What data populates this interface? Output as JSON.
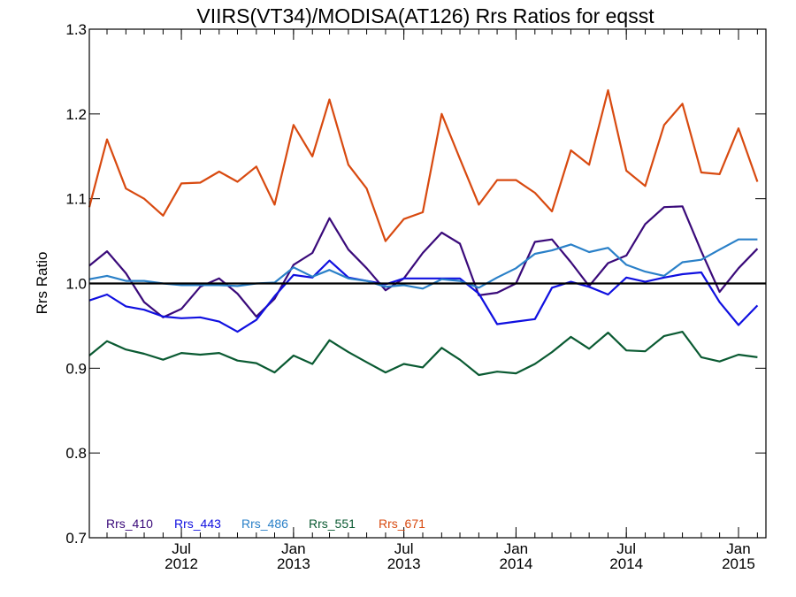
{
  "chart_data": {
    "type": "line",
    "title": "VIIRS(VT34)/MODISA(AT126)  Rrs Ratios for eqsst",
    "xlabel": "",
    "ylabel": "Rrs Ratio",
    "ylim": [
      0.7,
      1.3
    ],
    "yticks": [
      0.7,
      0.8,
      0.9,
      1.0,
      1.1,
      1.2,
      1.3
    ],
    "ytick_labels": [
      "0.7",
      "0.8",
      "0.9",
      "1.0",
      "1.1",
      "1.2",
      "1.3"
    ],
    "xlim": [
      "2012-02-01",
      "2015-02-15"
    ],
    "xticks": [
      {
        "date": "2012-07-01",
        "line1": "Jul",
        "line2": "2012"
      },
      {
        "date": "2013-01-01",
        "line1": "Jan",
        "line2": "2013"
      },
      {
        "date": "2013-07-01",
        "line1": "Jul",
        "line2": "2013"
      },
      {
        "date": "2014-01-01",
        "line1": "Jan",
        "line2": "2014"
      },
      {
        "date": "2014-07-01",
        "line1": "Jul",
        "line2": "2014"
      },
      {
        "date": "2015-01-01",
        "line1": "Jan",
        "line2": "2015"
      }
    ],
    "reference_line": 1.0,
    "legend_position": "bottom-left",
    "x": [
      "2012-02-01",
      "2012-03-01",
      "2012-04-01",
      "2012-05-01",
      "2012-06-01",
      "2012-07-01",
      "2012-08-01",
      "2012-09-01",
      "2012-10-01",
      "2012-11-01",
      "2012-12-01",
      "2013-01-01",
      "2013-02-01",
      "2013-03-01",
      "2013-04-01",
      "2013-05-01",
      "2013-06-01",
      "2013-07-01",
      "2013-08-01",
      "2013-09-01",
      "2013-10-01",
      "2013-11-01",
      "2013-12-01",
      "2014-01-01",
      "2014-02-01",
      "2014-03-01",
      "2014-04-01",
      "2014-05-01",
      "2014-06-01",
      "2014-07-01",
      "2014-08-01",
      "2014-09-01",
      "2014-10-01",
      "2014-11-01",
      "2014-12-01",
      "2015-01-01",
      "2015-02-01"
    ],
    "series": [
      {
        "name": "Rrs_410",
        "color": "#3a0a7a",
        "values": [
          1.021,
          1.038,
          1.012,
          0.978,
          0.96,
          0.97,
          0.996,
          1.006,
          0.988,
          0.961,
          0.982,
          1.022,
          1.036,
          1.077,
          1.04,
          1.018,
          0.992,
          1.006,
          1.036,
          1.06,
          1.047,
          0.986,
          0.989,
          1.0,
          1.049,
          1.052,
          1.025,
          0.997,
          1.024,
          1.033,
          1.07,
          1.09,
          1.091,
          1.038,
          0.99,
          1.018,
          1.041
        ]
      },
      {
        "name": "Rrs_443",
        "color": "#1010e0",
        "values": [
          0.98,
          0.987,
          0.973,
          0.969,
          0.961,
          0.959,
          0.96,
          0.955,
          0.943,
          0.957,
          0.985,
          1.01,
          1.007,
          1.027,
          1.007,
          1.003,
          0.999,
          1.006,
          1.006,
          1.006,
          1.006,
          0.988,
          0.952,
          0.955,
          0.958,
          0.995,
          1.002,
          0.996,
          0.987,
          1.007,
          1.002,
          1.007,
          1.011,
          1.013,
          0.978,
          0.951,
          0.974
        ]
      },
      {
        "name": "Rrs_486",
        "color": "#2a80c8",
        "values": [
          1.005,
          1.009,
          1.003,
          1.003,
          1.0,
          0.998,
          0.998,
          0.998,
          0.997,
          1.0,
          1.001,
          1.019,
          1.008,
          1.016,
          1.006,
          1.003,
          0.996,
          0.998,
          0.994,
          1.005,
          1.003,
          0.995,
          1.007,
          1.018,
          1.035,
          1.039,
          1.046,
          1.037,
          1.042,
          1.022,
          1.014,
          1.009,
          1.025,
          1.028,
          1.04,
          1.052,
          1.052
        ]
      },
      {
        "name": "Rrs_551",
        "color": "#0a5a32",
        "values": [
          0.915,
          0.932,
          0.922,
          0.917,
          0.91,
          0.918,
          0.916,
          0.918,
          0.909,
          0.906,
          0.895,
          0.915,
          0.905,
          0.933,
          0.919,
          0.907,
          0.895,
          0.905,
          0.901,
          0.924,
          0.91,
          0.892,
          0.896,
          0.894,
          0.905,
          0.919,
          0.937,
          0.923,
          0.942,
          0.921,
          0.92,
          0.938,
          0.943,
          0.913,
          0.908,
          0.916,
          0.913
        ]
      },
      {
        "name": "Rrs_671",
        "color": "#d84a10",
        "values": [
          1.09,
          1.17,
          1.112,
          1.1,
          1.08,
          1.118,
          1.119,
          1.132,
          1.12,
          1.138,
          1.093,
          1.187,
          1.15,
          1.217,
          1.14,
          1.112,
          1.05,
          1.076,
          1.084,
          1.2,
          1.147,
          1.093,
          1.122,
          1.122,
          1.107,
          1.085,
          1.157,
          1.14,
          1.228,
          1.133,
          1.115,
          1.187,
          1.212,
          1.131,
          1.129,
          1.183,
          1.12
        ]
      }
    ]
  }
}
